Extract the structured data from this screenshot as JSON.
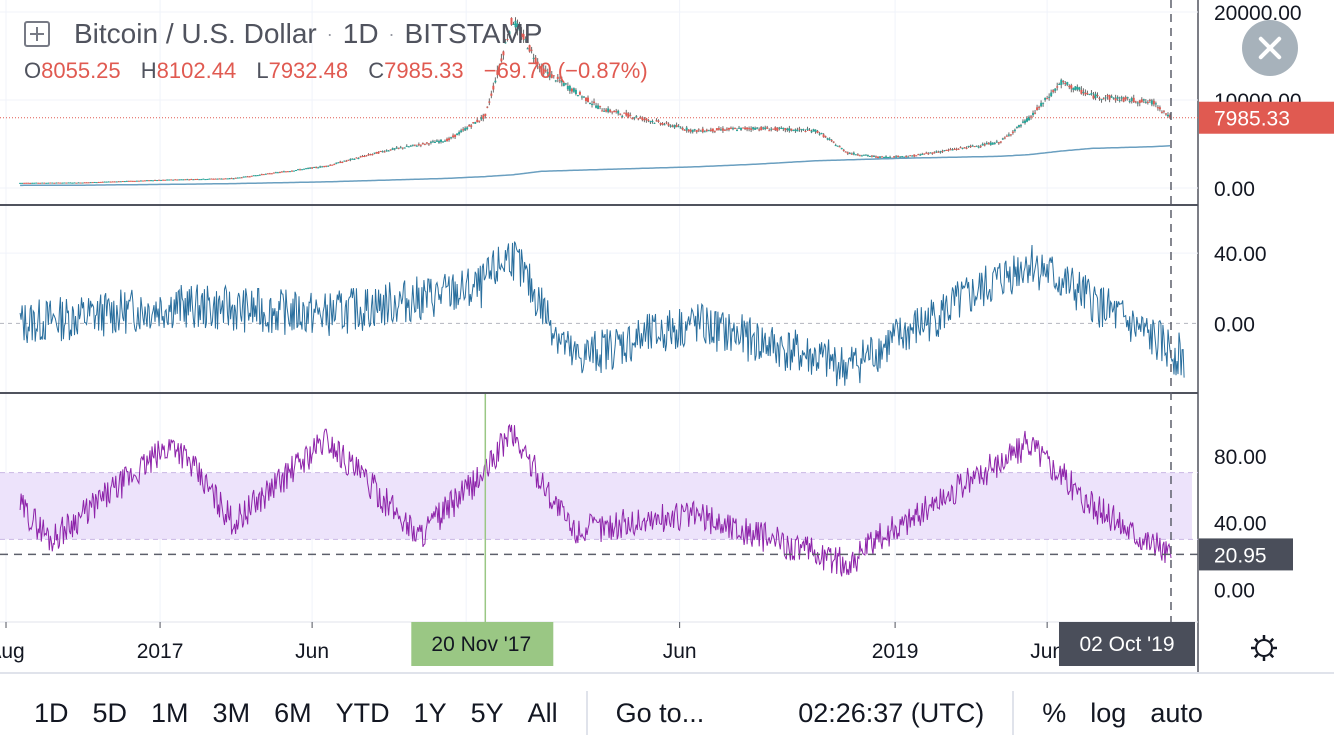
{
  "header": {
    "symbol": "Bitcoin / U.S. Dollar",
    "interval": "1D",
    "exchange": "BITSTAMP",
    "ohlc": {
      "o_label": "O",
      "o": "8055.25",
      "h_label": "H",
      "h": "8102.44",
      "l_label": "L",
      "l": "7932.48",
      "c_label": "C",
      "c": "7985.33",
      "change": "−69.70 (−0.87%)"
    }
  },
  "colors": {
    "up": "#26a69a",
    "down": "#e05a51",
    "candle": "#6b6b6b",
    "sma": "#6a9fc0",
    "momentum": "#2a6f9e",
    "rsi": "#8e24aa",
    "rsi_band": "#ede3fb",
    "crosshair_label_bg": "#9ac784",
    "last_label_bg": "#e05a51",
    "dark_label_bg": "#4a4e5a"
  },
  "chart_data": [
    {
      "type": "line",
      "title": "Bitcoin / U.S. Dollar · 1D · BITSTAMP",
      "x": [
        "2016-08",
        "2016-10",
        "2017-01",
        "2017-03",
        "2017-06",
        "2017-08",
        "2017-10",
        "2017-11-20",
        "2017-12-17",
        "2018-01",
        "2018-03",
        "2018-06",
        "2018-08",
        "2018-10",
        "2018-11",
        "2018-12",
        "2019-01",
        "2019-04",
        "2019-05",
        "2019-06",
        "2019-07",
        "2019-09",
        "2019-10-02"
      ],
      "series": [
        {
          "values": [
            580,
            620,
            960,
            1100,
            2500,
            4300,
            5500,
            8200,
            19200,
            13500,
            9000,
            6500,
            6800,
            6500,
            4000,
            3500,
            3600,
            5200,
            8000,
            12000,
            10500,
            9700,
            7985.33
          ]
        },
        {
          "values": [
            300,
            320,
            420,
            500,
            700,
            900,
            1100,
            1300,
            1500,
            1900,
            2100,
            2400,
            2700,
            3100,
            3200,
            3300,
            3400,
            3600,
            3800,
            4200,
            4500,
            4700,
            4800
          ]
        }
      ],
      "ylim": [
        0,
        20000
      ],
      "yticks": [
        "20000.00",
        "10000.00",
        "0.00"
      ],
      "last_price": "7985.33"
    },
    {
      "type": "line",
      "x": [
        "2016-08",
        "2017-01",
        "2017-06",
        "2017-11",
        "2017-12",
        "2018-02",
        "2018-06",
        "2018-11",
        "2019-05",
        "2019-10"
      ],
      "series": [
        {
          "values": [
            0,
            10,
            5,
            20,
            40,
            -20,
            0,
            -25,
            35,
            -20
          ]
        }
      ],
      "ylim": [
        -30,
        60
      ],
      "yticks": [
        "40.00",
        "0.00"
      ]
    },
    {
      "type": "line",
      "x": [
        "2016-08",
        "2016-09",
        "2017-01",
        "2017-03",
        "2017-06",
        "2017-09",
        "2017-11-20",
        "2017-12",
        "2018-02",
        "2018-06",
        "2018-11",
        "2018-12",
        "2019-05",
        "2019-07",
        "2019-10-02"
      ],
      "series": [
        {
          "values": [
            50,
            30,
            88,
            40,
            90,
            32,
            70,
            95,
            35,
            45,
            15,
            30,
            88,
            50,
            20.95
          ]
        }
      ],
      "ylim": [
        -10,
        110
      ],
      "yticks": [
        "80.00",
        "40.00",
        "0.00"
      ],
      "band": [
        30,
        70
      ],
      "last_value": "20.95"
    }
  ],
  "x_axis": {
    "labels": [
      "Aug",
      "2017",
      "Jun",
      "Jun",
      "2019",
      "Jun"
    ],
    "crosshair_label": "20 Nov '17",
    "cursor_label": "02 Oct '19"
  },
  "bottom_bar": {
    "ranges": [
      "1D",
      "5D",
      "1M",
      "3M",
      "6M",
      "YTD",
      "1Y",
      "5Y",
      "All"
    ],
    "goto": "Go to...",
    "clock": "02:26:37 (UTC)",
    "percent": "%",
    "log": "log",
    "auto": "auto"
  },
  "icons": {
    "close": "close-icon",
    "settings": "gear-icon",
    "add": "plus-box-icon"
  }
}
